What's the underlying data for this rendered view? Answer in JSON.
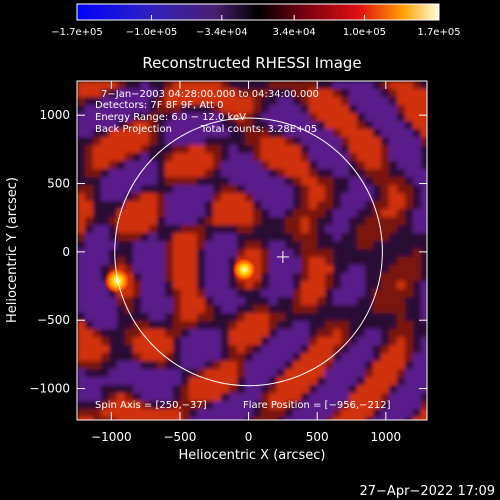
{
  "chart_data": {
    "type": "heatmap",
    "title": "Reconstructed RHESSI Image",
    "xlabel": "Heliocentric X (arcsec)",
    "ylabel": "Heliocentric Y (arcsec)",
    "xlim": [
      -1250,
      1300
    ],
    "ylim": [
      -1230,
      1250
    ],
    "x_ticks": [
      {
        "value": -1000,
        "label": "−1000"
      },
      {
        "value": -500,
        "label": "−500"
      },
      {
        "value": 0,
        "label": "0"
      },
      {
        "value": 500,
        "label": "500"
      },
      {
        "value": 1000,
        "label": "1000"
      }
    ],
    "y_ticks": [
      {
        "value": 1000,
        "label": "1000"
      },
      {
        "value": 500,
        "label": "500"
      },
      {
        "value": 0,
        "label": "0"
      },
      {
        "value": -500,
        "label": "−500"
      },
      {
        "value": -1000,
        "label": "−1000"
      }
    ],
    "colorbar": {
      "range": [
        -170000,
        170000
      ],
      "tick_values": [
        -170000,
        -100000,
        -34000,
        34000,
        100000,
        170000
      ],
      "tick_labels": [
        "−1.7e+05",
        "−1.0e+05",
        "−3.4e+04",
        "3.4e+04",
        "1.0e+05",
        "1.7e+05"
      ]
    },
    "annotations": {
      "time_range": "7−Jan−2003 04:28:00.000 to 04:34:00.000",
      "detectors": "Detectors: 7F 8F 9F, Att 0",
      "energy": "Energy Range: 6.0 − 12.0 keV",
      "method": "Back Projection",
      "counts": "Total counts: 3.28E+05",
      "spin_axis": "Spin Axis = [250,−37]",
      "flare_position": "Flare Position = [−956,−212]"
    },
    "solar_limb": {
      "center": [
        0,
        0
      ],
      "radius_arcsec": 975
    },
    "spin_axis_marker": [
      250,
      -37
    ],
    "sources": [
      {
        "x": -956,
        "y": -212,
        "intensity": 170000
      },
      {
        "x": -30,
        "y": -130,
        "intensity": 155000
      }
    ],
    "colors": {
      "background": "#000000",
      "negative": "#5a1a8a",
      "positive": "#d03010",
      "peak": "#ffffc0"
    }
  },
  "footer": {
    "timestamp": "27−Apr−2022 17:09"
  }
}
